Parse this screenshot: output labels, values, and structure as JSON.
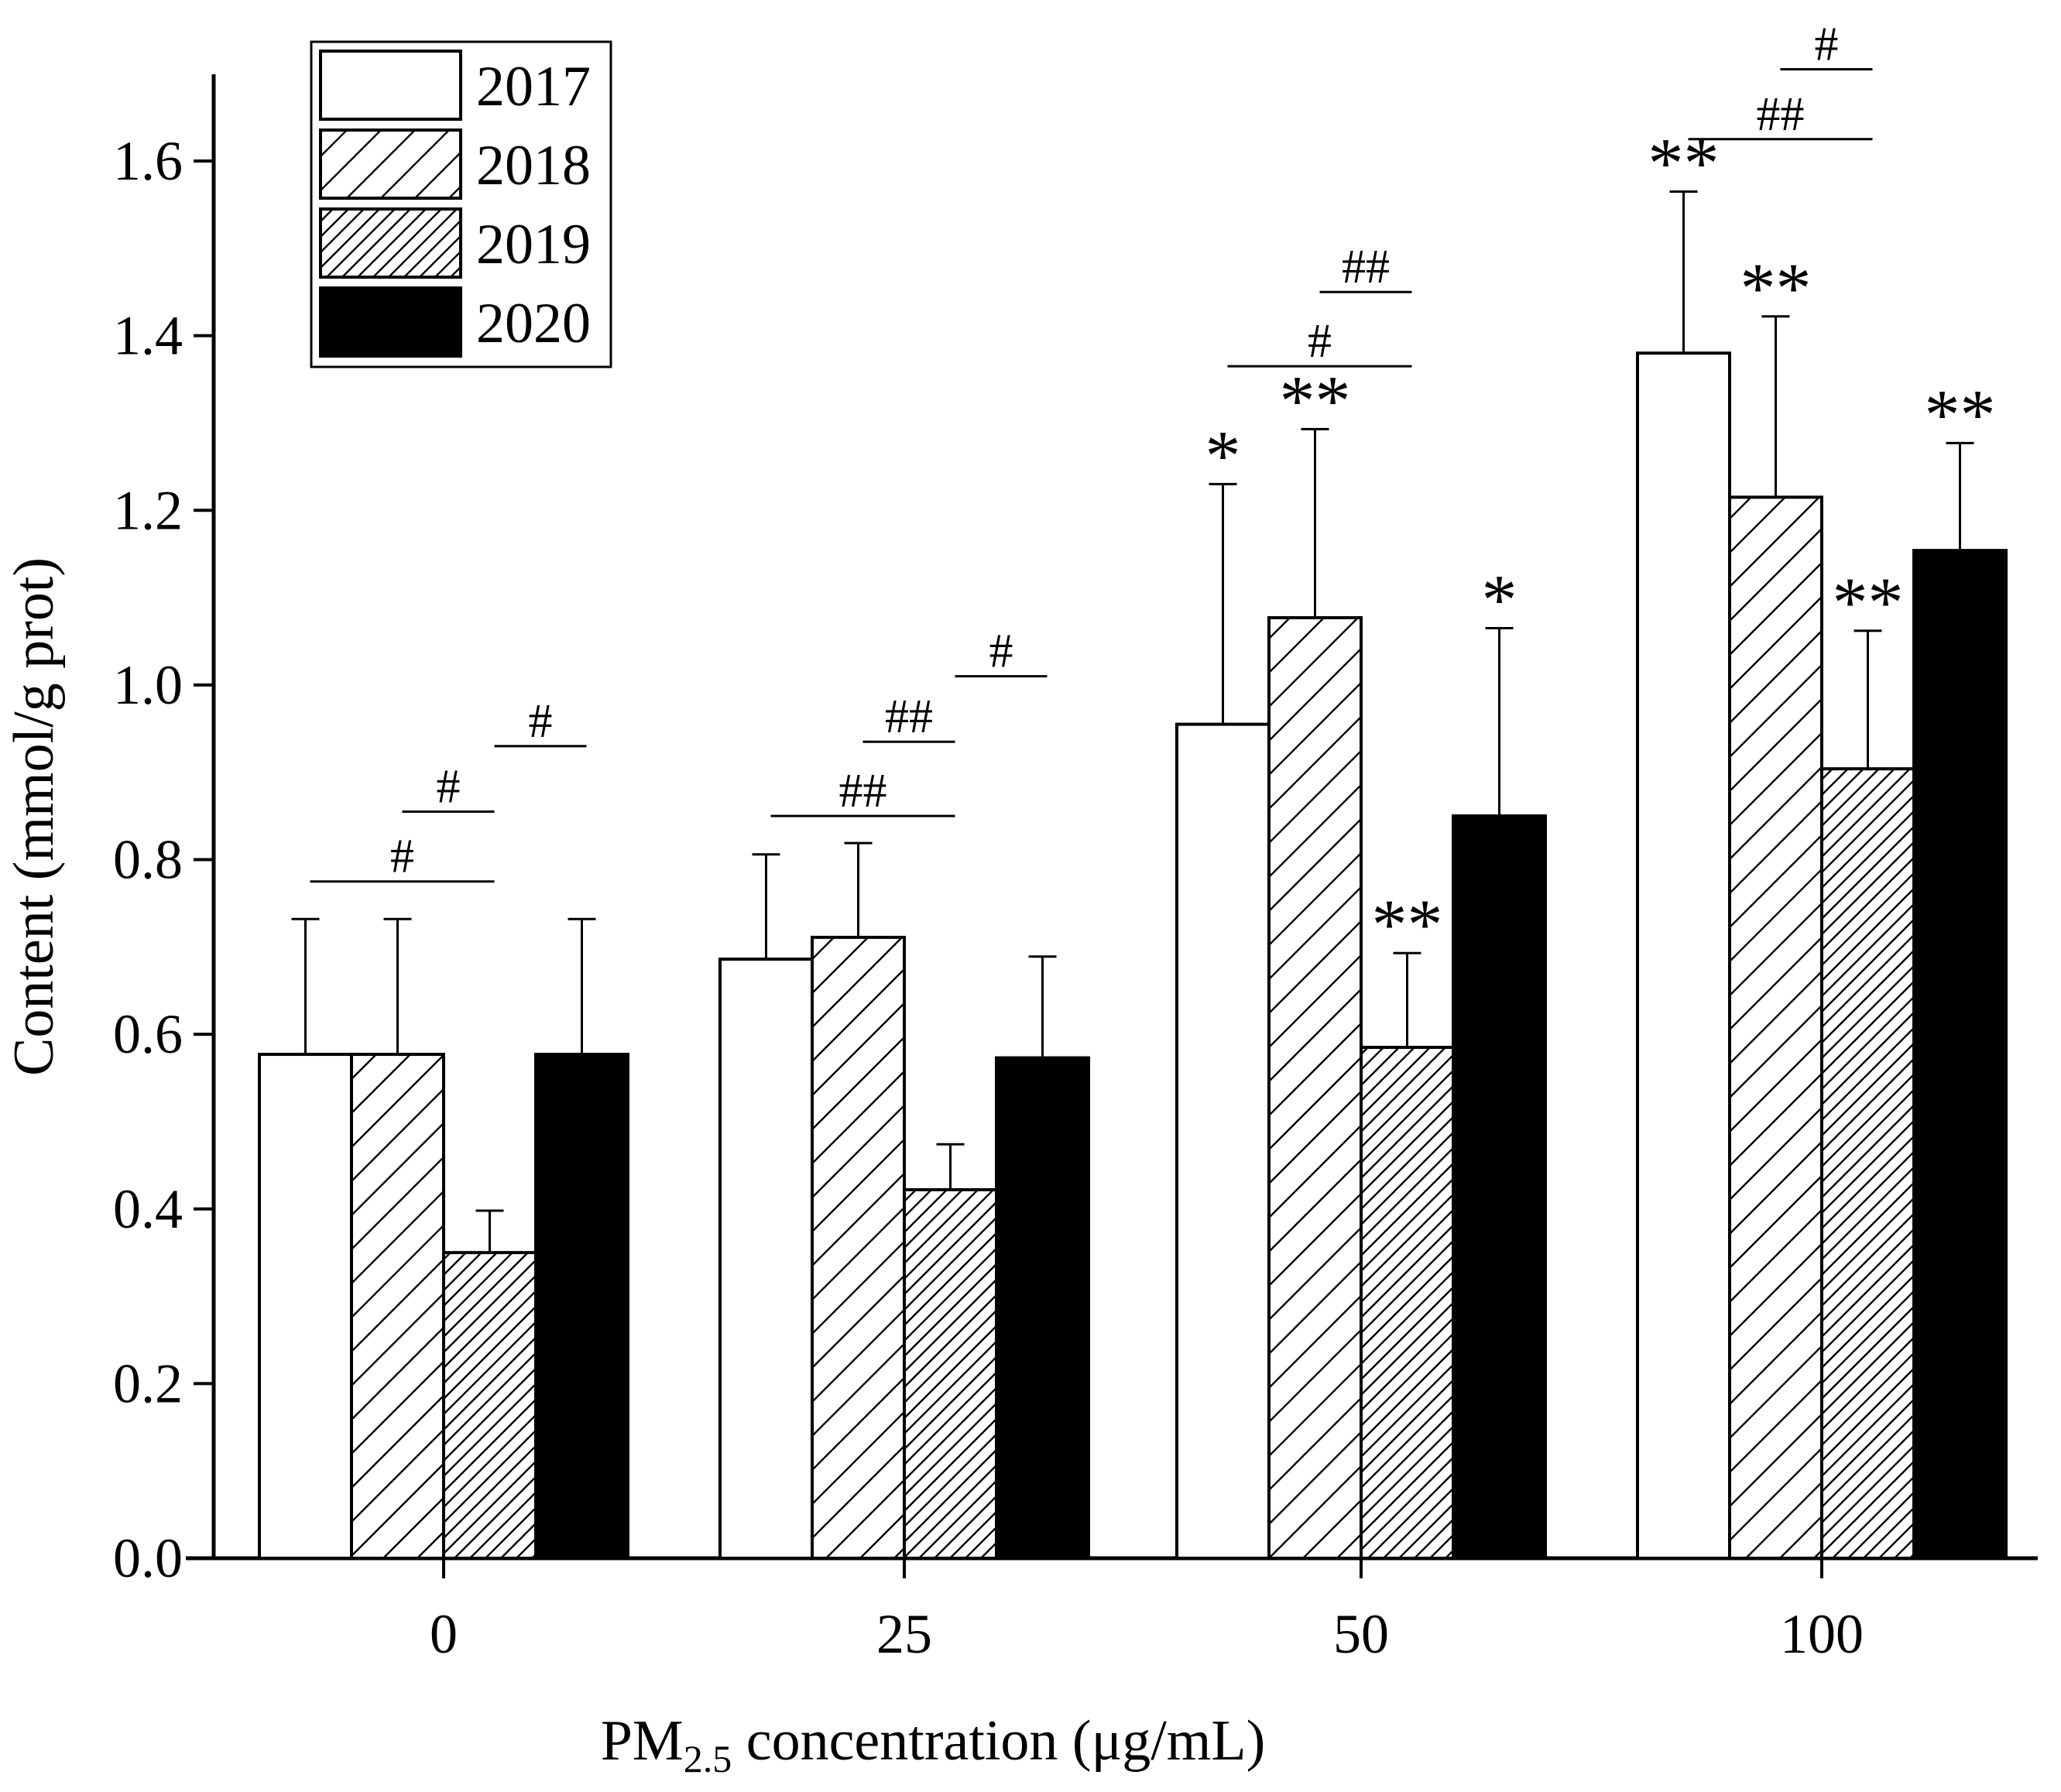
{
  "chart_data": {
    "type": "bar",
    "xlabel_main": "PM",
    "xlabel_sub": "2.5",
    "xlabel_rest": " concentration (μg/mL)",
    "ylabel": "Content (mmol/g prot)",
    "ylim": [
      0,
      1.7
    ],
    "yticks": [
      "0.0",
      "0.2",
      "0.4",
      "0.6",
      "0.8",
      "1.0",
      "1.2",
      "1.4",
      "1.6"
    ],
    "categories": [
      "0",
      "25",
      "50",
      "100"
    ],
    "series": [
      {
        "name": "2017",
        "fill": "white",
        "values": [
          0.577,
          0.686,
          0.955,
          1.38
        ],
        "errors": [
          0.155,
          0.12,
          0.275,
          0.185
        ],
        "marks": [
          "",
          "",
          "*",
          "**"
        ]
      },
      {
        "name": "2018",
        "fill": "hatch-wide",
        "values": [
          0.577,
          0.711,
          1.077,
          1.215
        ],
        "errors": [
          0.155,
          0.108,
          0.216,
          0.207
        ],
        "marks": [
          "",
          "",
          "**",
          "**"
        ]
      },
      {
        "name": "2019",
        "fill": "hatch-dense",
        "values": [
          0.35,
          0.422,
          0.585,
          0.904
        ],
        "errors": [
          0.048,
          0.052,
          0.108,
          0.158
        ],
        "marks": [
          "",
          "",
          "**",
          "**"
        ]
      },
      {
        "name": "2020",
        "fill": "black",
        "values": [
          0.577,
          0.573,
          0.85,
          1.154
        ],
        "errors": [
          0.155,
          0.116,
          0.215,
          0.123
        ],
        "marks": [
          "",
          "",
          "*",
          "**"
        ]
      }
    ],
    "comparisons": [
      {
        "category": 0,
        "from": 0,
        "to": 2,
        "y": 0.775,
        "label": "#"
      },
      {
        "category": 0,
        "from": 1,
        "to": 2,
        "y": 0.855,
        "label": "#"
      },
      {
        "category": 0,
        "from": 2,
        "to": 3,
        "y": 0.93,
        "label": "#"
      },
      {
        "category": 1,
        "from": 0,
        "to": 2,
        "y": 0.85,
        "label": "##"
      },
      {
        "category": 1,
        "from": 1,
        "to": 2,
        "y": 0.935,
        "label": "##"
      },
      {
        "category": 1,
        "from": 2,
        "to": 3,
        "y": 1.01,
        "label": "#"
      },
      {
        "category": 2,
        "from": 0,
        "to": 2,
        "y": 1.365,
        "label": "#"
      },
      {
        "category": 2,
        "from": 1,
        "to": 2,
        "y": 1.45,
        "label": "##"
      },
      {
        "category": 3,
        "from": 0,
        "to": 2,
        "y": 1.625,
        "label": "##"
      },
      {
        "category": 3,
        "from": 1,
        "to": 2,
        "y": 1.705,
        "label": "#"
      }
    ],
    "legend_position": "top-left",
    "grid": false
  }
}
